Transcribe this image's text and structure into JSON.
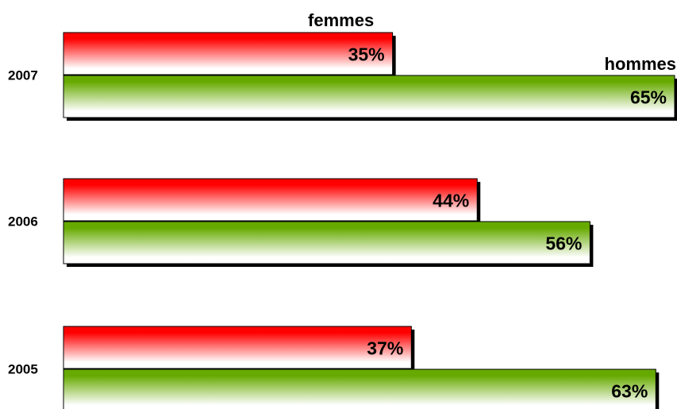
{
  "chart_data": {
    "type": "bar",
    "orientation": "horizontal",
    "categories": [
      "2007",
      "2006",
      "2005"
    ],
    "series": [
      {
        "name": "femmes",
        "color": "#ff0000",
        "values": [
          35,
          44,
          37
        ],
        "value_labels": [
          "35%",
          "44%",
          "37%"
        ]
      },
      {
        "name": "hommes",
        "color": "#66aa00",
        "values": [
          65,
          56,
          63
        ],
        "value_labels": [
          "65%",
          "56%",
          "63%"
        ]
      }
    ]
  }
}
